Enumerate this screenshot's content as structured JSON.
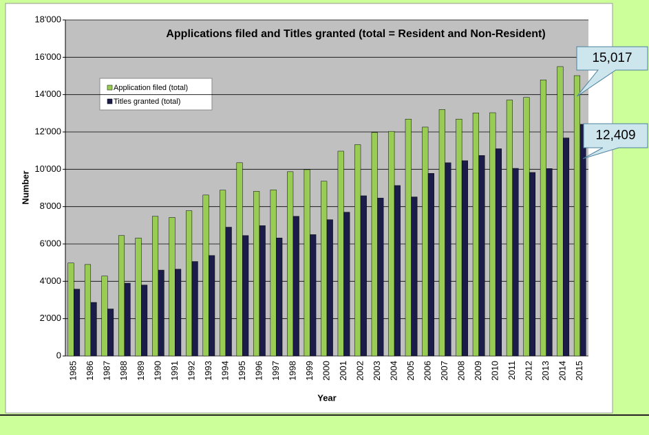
{
  "chart_data": {
    "type": "bar",
    "title": "Applications filed and Titles granted (total = Resident and Non-Resident)",
    "x_label": "Year",
    "y_label": "Number",
    "categories": [
      "1985",
      "1986",
      "1987",
      "1988",
      "1989",
      "1990",
      "1991",
      "1992",
      "1993",
      "1994",
      "1995",
      "1996",
      "1997",
      "1998",
      "1999",
      "2000",
      "2001",
      "2002",
      "2003",
      "2004",
      "2005",
      "2006",
      "2007",
      "2008",
      "2009",
      "2010",
      "2011",
      "2012",
      "2013",
      "2014",
      "2015"
    ],
    "series": [
      {
        "name": "Application filed (total)",
        "color": "#99cc55",
        "values": [
          4980,
          4900,
          4280,
          6450,
          6320,
          7480,
          7420,
          7780,
          8620,
          8880,
          10350,
          8820,
          8900,
          9870,
          9980,
          9360,
          10970,
          11320,
          11970,
          12030,
          12690,
          12260,
          13200,
          12690,
          13020,
          13030,
          13710,
          13850,
          14790,
          15500,
          15017
        ],
        "value_labels": [
          null,
          null,
          null,
          null,
          null,
          null,
          null,
          null,
          null,
          null,
          null,
          null,
          null,
          null,
          null,
          null,
          null,
          null,
          null,
          null,
          null,
          null,
          null,
          null,
          null,
          null,
          null,
          null,
          null,
          null,
          "15,017"
        ]
      },
      {
        "name": "Titles granted (total)",
        "color": "#1c1c4a",
        "values": [
          3580,
          2870,
          2520,
          3900,
          3800,
          4600,
          4650,
          5060,
          5380,
          6900,
          6450,
          6980,
          6320,
          7480,
          6500,
          7300,
          7700,
          8580,
          8460,
          9130,
          8520,
          9780,
          10350,
          10460,
          10740,
          11100,
          10050,
          9830,
          10040,
          11680,
          12409
        ],
        "value_labels": [
          null,
          null,
          null,
          null,
          null,
          null,
          null,
          null,
          null,
          null,
          null,
          null,
          null,
          null,
          null,
          null,
          null,
          null,
          null,
          null,
          null,
          null,
          null,
          null,
          null,
          null,
          null,
          null,
          null,
          null,
          "12,409"
        ]
      }
    ],
    "ylim": [
      0,
      18000
    ],
    "yticks": [
      0,
      {
        "value": 2000,
        "label": "2'000"
      },
      {
        "value": 4000,
        "label": "4'000"
      },
      {
        "value": 6000,
        "label": "6'000"
      },
      {
        "value": 8000,
        "label": "8'000"
      },
      {
        "value": 10000,
        "label": "10'000"
      },
      {
        "value": 12000,
        "label": "12'000"
      },
      {
        "value": 14000,
        "label": "14'000"
      },
      {
        "value": 16000,
        "label": "16'000"
      },
      {
        "value": 18000,
        "label": "18'000"
      }
    ],
    "grid": true,
    "legend": "upper left"
  }
}
